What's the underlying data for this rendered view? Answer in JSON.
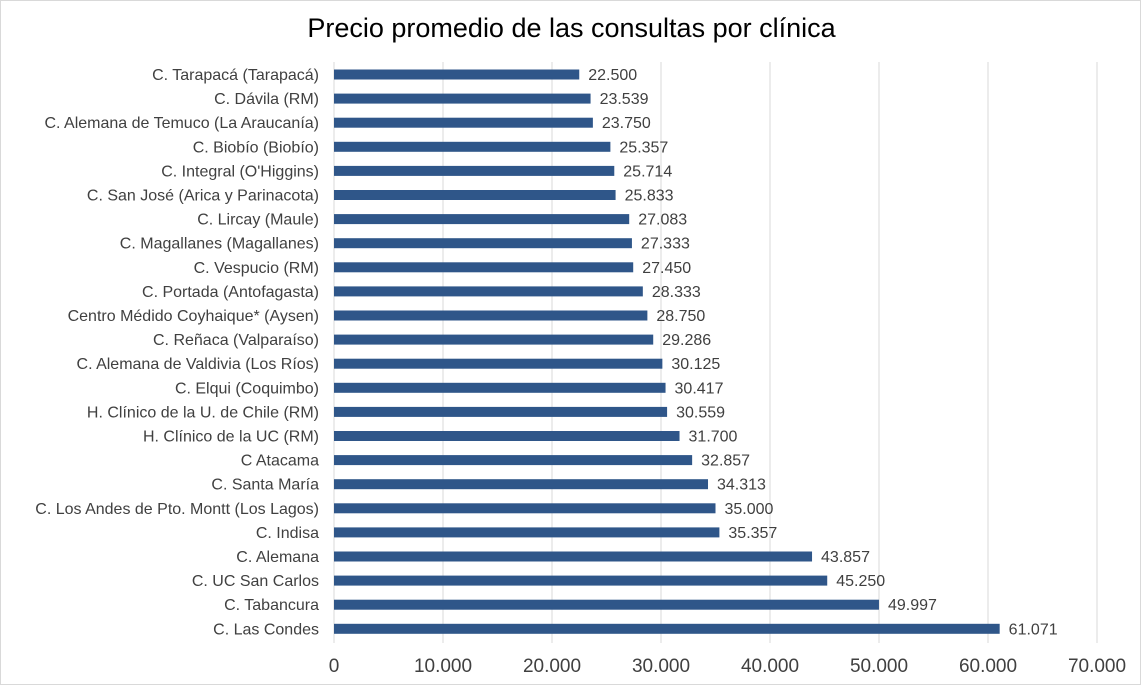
{
  "chart_data": {
    "type": "bar",
    "orientation": "horizontal",
    "title": "Precio promedio de las consultas por clínica",
    "xlabel": "",
    "ylabel": "",
    "xlim": [
      0,
      70000
    ],
    "xticks": [
      0,
      10000,
      20000,
      30000,
      40000,
      50000,
      60000,
      70000
    ],
    "xtick_labels": [
      "0",
      "10.000",
      "20.000",
      "30.000",
      "40.000",
      "50.000",
      "60.000",
      "70.000"
    ],
    "grid": "vertical",
    "legend": "none",
    "bar_color": "#2f5689",
    "categories": [
      "C. Tarapacá (Tarapacá)",
      "C. Dávila (RM)",
      "C. Alemana de Temuco (La Araucanía)",
      "C. Biobío (Biobío)",
      "C. Integral (O'Higgins)",
      "C. San José (Arica y Parinacota)",
      "C. Lircay (Maule)",
      "C. Magallanes (Magallanes)",
      "C. Vespucio (RM)",
      "C. Portada (Antofagasta)",
      "Centro Médido Coyhaique* (Aysen)",
      "C. Reñaca (Valparaíso)",
      "C. Alemana de Valdivia (Los Ríos)",
      "C. Elqui (Coquimbo)",
      "H. Clínico de la U. de Chile (RM)",
      "H. Clínico de la UC (RM)",
      "C Atacama",
      "C. Santa María",
      "C. Los Andes de Pto. Montt (Los Lagos)",
      "C. Indisa",
      "C. Alemana",
      "C. UC San Carlos",
      "C. Tabancura",
      "C. Las Condes"
    ],
    "values": [
      22500,
      23539,
      23750,
      25357,
      25714,
      25833,
      27083,
      27333,
      27450,
      28333,
      28750,
      29286,
      30125,
      30417,
      30559,
      31700,
      32857,
      34313,
      35000,
      35357,
      43857,
      45250,
      49997,
      61071
    ],
    "value_labels": [
      "22.500",
      "23.539",
      "23.750",
      "25.357",
      "25.714",
      "25.833",
      "27.083",
      "27.333",
      "27.450",
      "28.333",
      "28.750",
      "29.286",
      "30.125",
      "30.417",
      "30.559",
      "31.700",
      "32.857",
      "34.313",
      "35.000",
      "35.357",
      "43.857",
      "45.250",
      "49.997",
      "61.071"
    ]
  }
}
